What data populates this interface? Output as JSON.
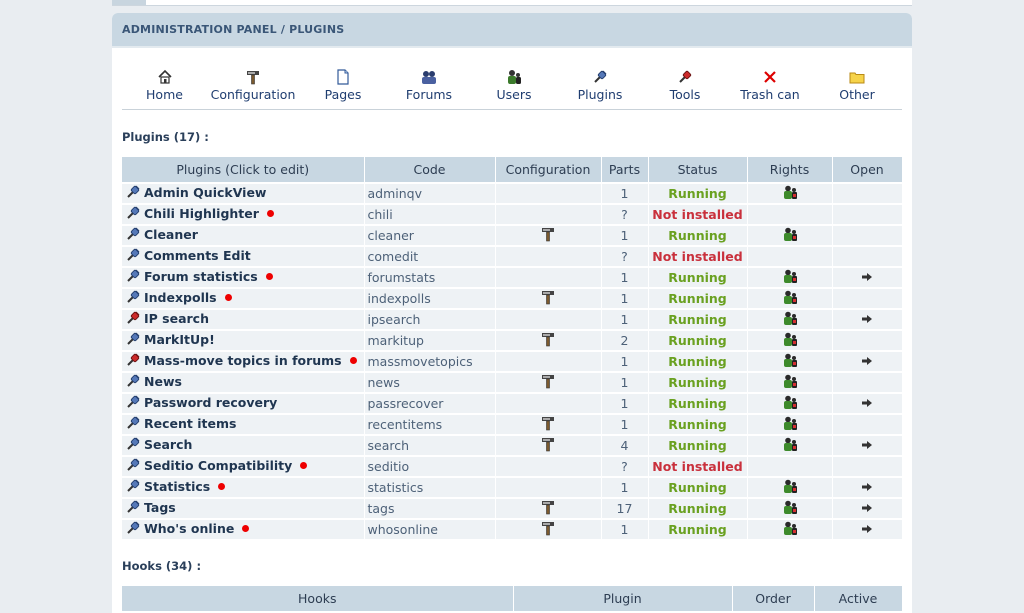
{
  "breadcrumb": "ADMINISTRATION PANEL / PLUGINS",
  "nav": [
    {
      "label": "Home",
      "icon": "home-icon"
    },
    {
      "label": "Configuration",
      "icon": "hammer-icon"
    },
    {
      "label": "Pages",
      "icon": "page-icon"
    },
    {
      "label": "Forums",
      "icon": "forums-icon"
    },
    {
      "label": "Users",
      "icon": "users-icon"
    },
    {
      "label": "Plugins",
      "icon": "plugin-icon"
    },
    {
      "label": "Tools",
      "icon": "tools-icon"
    },
    {
      "label": "Trash can",
      "icon": "trash-icon"
    },
    {
      "label": "Other",
      "icon": "folder-icon"
    }
  ],
  "plugins_title": "Plugins (17) :",
  "plugins_headers": [
    "Plugins (Click to edit)",
    "Code",
    "Configuration",
    "Parts",
    "Status",
    "Rights",
    "Open"
  ],
  "plugins": [
    {
      "name": "Admin QuickView",
      "dot": false,
      "red_icon": false,
      "code": "adminqv",
      "config": false,
      "parts": "1",
      "status": "Running",
      "rights": true,
      "open": false
    },
    {
      "name": "Chili Highlighter",
      "dot": true,
      "red_icon": false,
      "code": "chili",
      "config": false,
      "parts": "?",
      "status": "Not installed",
      "rights": false,
      "open": false
    },
    {
      "name": "Cleaner",
      "dot": false,
      "red_icon": false,
      "code": "cleaner",
      "config": true,
      "parts": "1",
      "status": "Running",
      "rights": true,
      "open": false
    },
    {
      "name": "Comments Edit",
      "dot": false,
      "red_icon": false,
      "code": "comedit",
      "config": false,
      "parts": "?",
      "status": "Not installed",
      "rights": false,
      "open": false
    },
    {
      "name": "Forum statistics",
      "dot": true,
      "red_icon": false,
      "code": "forumstats",
      "config": false,
      "parts": "1",
      "status": "Running",
      "rights": true,
      "open": true
    },
    {
      "name": "Indexpolls",
      "dot": true,
      "red_icon": false,
      "code": "indexpolls",
      "config": true,
      "parts": "1",
      "status": "Running",
      "rights": true,
      "open": false
    },
    {
      "name": "IP search",
      "dot": false,
      "red_icon": true,
      "code": "ipsearch",
      "config": false,
      "parts": "1",
      "status": "Running",
      "rights": true,
      "open": true
    },
    {
      "name": "MarkItUp!",
      "dot": false,
      "red_icon": false,
      "code": "markitup",
      "config": true,
      "parts": "2",
      "status": "Running",
      "rights": true,
      "open": false
    },
    {
      "name": "Mass-move topics in forums",
      "dot": true,
      "red_icon": true,
      "code": "massmovetopics",
      "config": false,
      "parts": "1",
      "status": "Running",
      "rights": true,
      "open": true
    },
    {
      "name": "News",
      "dot": false,
      "red_icon": false,
      "code": "news",
      "config": true,
      "parts": "1",
      "status": "Running",
      "rights": true,
      "open": false
    },
    {
      "name": "Password recovery",
      "dot": false,
      "red_icon": false,
      "code": "passrecover",
      "config": false,
      "parts": "1",
      "status": "Running",
      "rights": true,
      "open": true
    },
    {
      "name": "Recent items",
      "dot": false,
      "red_icon": false,
      "code": "recentitems",
      "config": true,
      "parts": "1",
      "status": "Running",
      "rights": true,
      "open": false
    },
    {
      "name": "Search",
      "dot": false,
      "red_icon": false,
      "code": "search",
      "config": true,
      "parts": "4",
      "status": "Running",
      "rights": true,
      "open": true
    },
    {
      "name": "Seditio Compatibility",
      "dot": true,
      "red_icon": false,
      "code": "seditio",
      "config": false,
      "parts": "?",
      "status": "Not installed",
      "rights": false,
      "open": false
    },
    {
      "name": "Statistics",
      "dot": true,
      "red_icon": false,
      "code": "statistics",
      "config": false,
      "parts": "1",
      "status": "Running",
      "rights": true,
      "open": true
    },
    {
      "name": "Tags",
      "dot": false,
      "red_icon": false,
      "code": "tags",
      "config": true,
      "parts": "17",
      "status": "Running",
      "rights": true,
      "open": true
    },
    {
      "name": "Who's online",
      "dot": true,
      "red_icon": false,
      "code": "whosonline",
      "config": true,
      "parts": "1",
      "status": "Running",
      "rights": true,
      "open": true
    }
  ],
  "hooks_title": "Hooks (34) :",
  "hooks_headers": [
    "Hooks",
    "Plugin",
    "Order",
    "Active"
  ],
  "colors": {
    "running": "#6aa121",
    "not_installed": "#c9303c",
    "header_bg": "#c8d7e2",
    "row_bg": "#eef2f5"
  }
}
